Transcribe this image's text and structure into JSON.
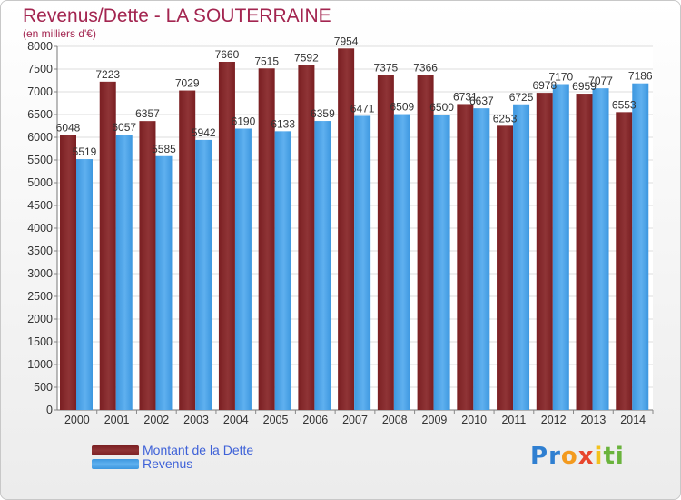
{
  "title": "Revenus/Dette - LA SOUTERRAINE",
  "subtitle": "(en milliers d'€)",
  "colors": {
    "debt": "#7a1f22",
    "debt_light": "#8f3436",
    "revenue": "#3d97df",
    "revenue_light": "#5fb0ef",
    "title": "#a32550",
    "legend_text": "#3f62d8"
  },
  "chart_data": {
    "type": "bar",
    "categories": [
      "2000",
      "2001",
      "2002",
      "2003",
      "2004",
      "2005",
      "2006",
      "2007",
      "2008",
      "2009",
      "2010",
      "2011",
      "2012",
      "2013",
      "2014"
    ],
    "series": [
      {
        "name": "Montant de la Dette",
        "values": [
          6048,
          7223,
          6357,
          7029,
          7660,
          7515,
          7592,
          7954,
          7375,
          7366,
          6731,
          6253,
          6978,
          6959,
          6553
        ],
        "labels": [
          "6048",
          "7223",
          "6357",
          "7029",
          "7660",
          "7515",
          "7592",
          "7954",
          "7375",
          "7366",
          "6731",
          "6253",
          "6978",
          "6959",
          "6553"
        ]
      },
      {
        "name": "Revenus",
        "values": [
          5519,
          6057,
          5585,
          5942,
          6190,
          6133,
          6359,
          6471,
          6509,
          6500,
          6637,
          6725,
          7170,
          7077,
          7186
        ],
        "labels": [
          "5519",
          "6057",
          "5585",
          "5942",
          "6190",
          "6133",
          "6359",
          "6471",
          "6509",
          "6500",
          "6637",
          "6725",
          "7170",
          "7077",
          "7186"
        ]
      }
    ],
    "ylim": [
      0,
      8000
    ],
    "yticks": [
      "0",
      "500",
      "1000",
      "1500",
      "2000",
      "2500",
      "3000",
      "3500",
      "4000",
      "4500",
      "5000",
      "5500",
      "6000",
      "6500",
      "7000",
      "7500",
      "8000"
    ],
    "grid": true,
    "legend_position": "bottom-left"
  },
  "legend": {
    "debt_label": "Montant de la Dette",
    "revenue_label": "Revenus"
  },
  "logo": {
    "letters": [
      "P",
      "r",
      "o",
      "x",
      "i",
      "t",
      "i"
    ],
    "colors": [
      "#2f7fd1",
      "#2f7fd1",
      "#f39a1e",
      "#e8452c",
      "#f3c21e",
      "#6ab33c",
      "#6ab33c"
    ]
  }
}
